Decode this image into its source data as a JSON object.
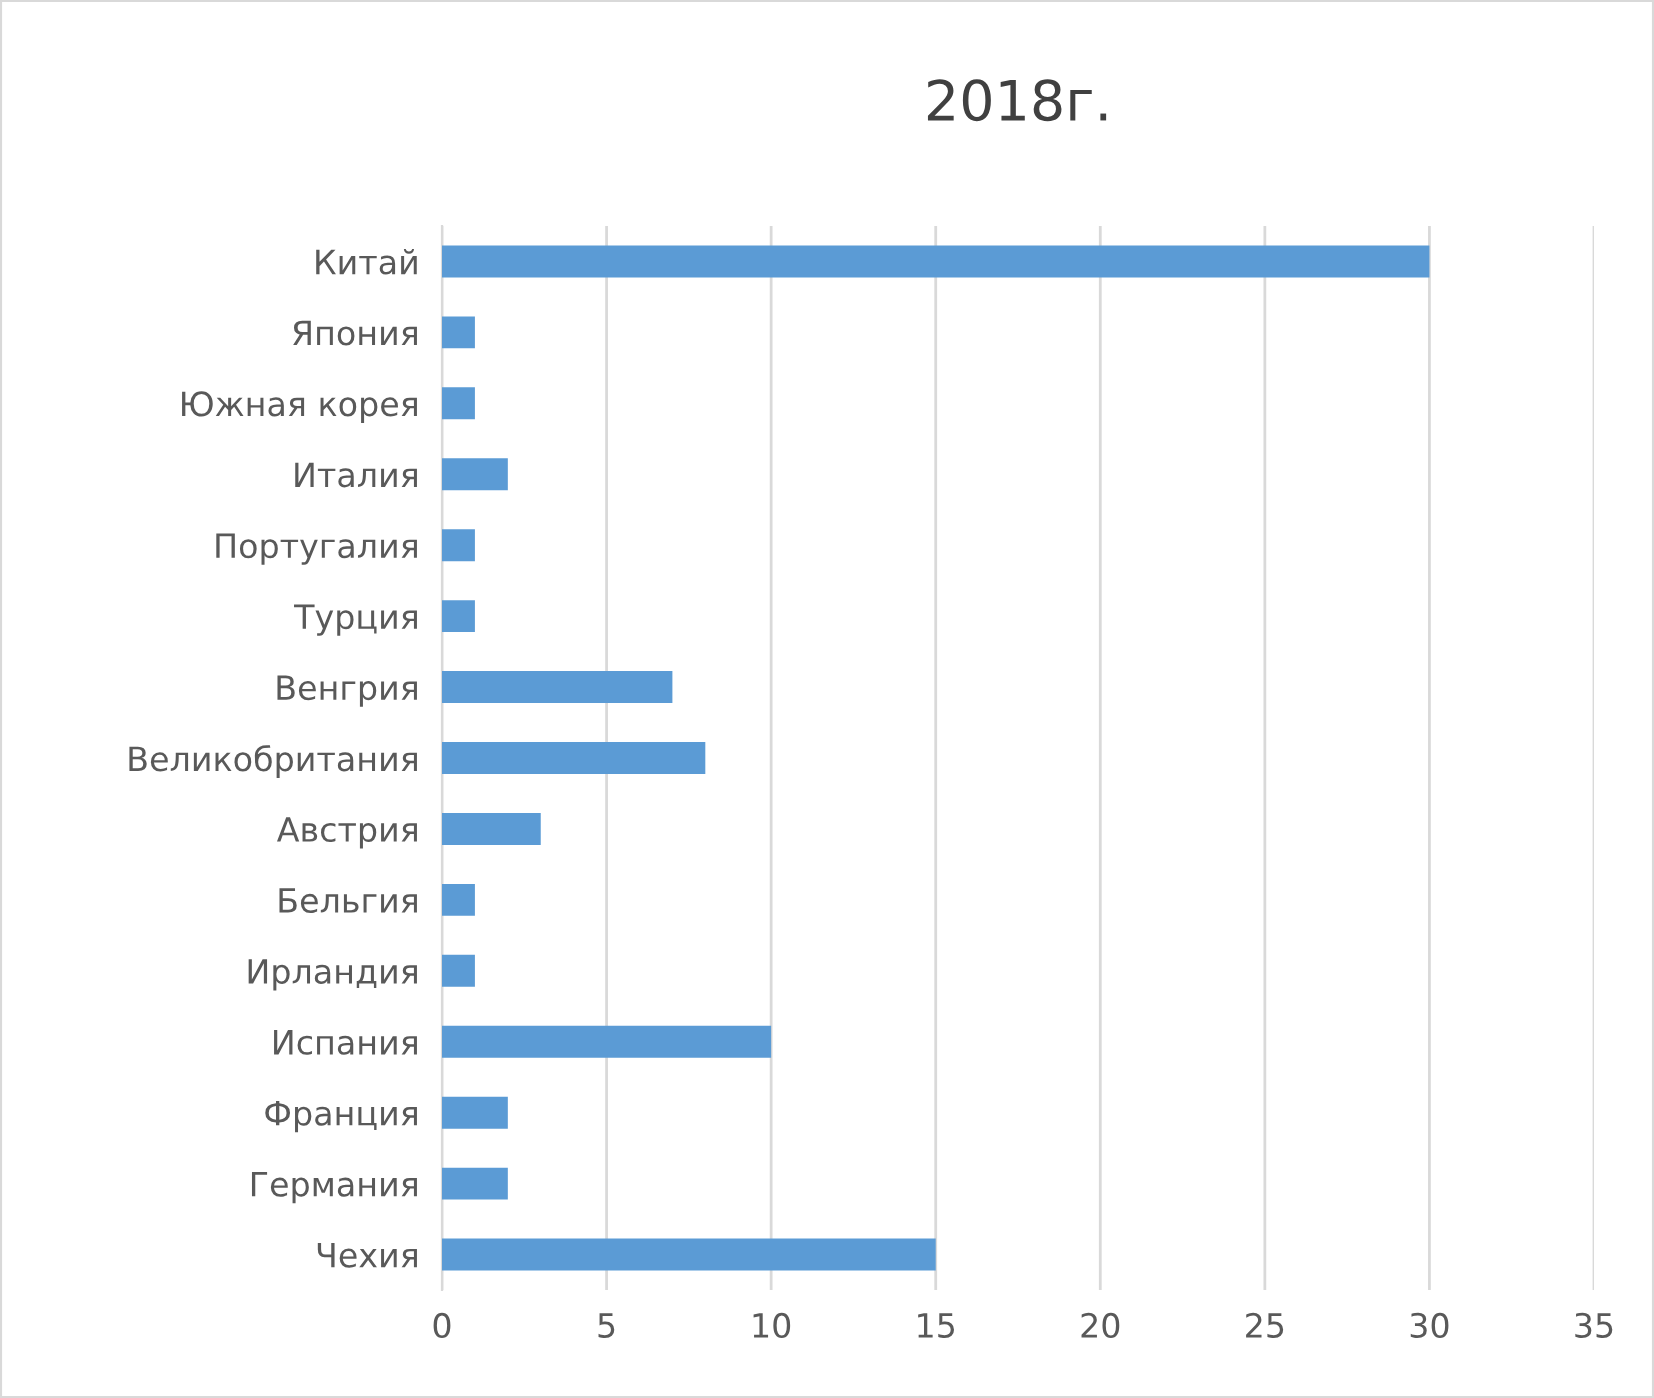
{
  "chart_data": {
    "type": "bar",
    "orientation": "horizontal",
    "title": "2018г.",
    "categories": [
      "Китай",
      "Япония",
      "Южная корея",
      "Италия",
      "Португалия",
      "Турция",
      "Венгрия",
      "Великобритания",
      "Австрия",
      "Бельгия",
      "Ирландия",
      "Испания",
      "Франция",
      "Германия",
      "Чехия"
    ],
    "values": [
      30,
      1,
      1,
      2,
      1,
      1,
      7,
      8,
      3,
      1,
      1,
      10,
      2,
      2,
      15
    ],
    "color": "#5b9bd5",
    "xlim": [
      0,
      35
    ],
    "xticks": [
      0,
      5,
      10,
      15,
      20,
      25,
      30,
      35
    ],
    "grid": "x",
    "legend": false
  }
}
